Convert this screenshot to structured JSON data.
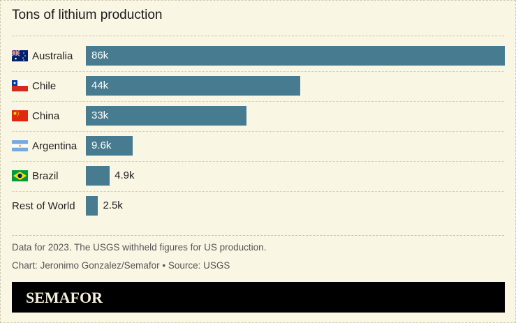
{
  "chart_data": {
    "type": "bar",
    "orientation": "horizontal",
    "title": "Tons of lithium production",
    "categories": [
      "Australia",
      "Chile",
      "China",
      "Argentina",
      "Brazil",
      "Rest of World"
    ],
    "values": [
      86000,
      44000,
      33000,
      9600,
      4900,
      2500
    ],
    "data_labels": [
      "86k",
      "44k",
      "33k",
      "9.6k",
      "4.9k",
      "2.5k"
    ],
    "flags": [
      "australia-flag",
      "chile-flag",
      "china-flag",
      "argentina-flag",
      "brazil-flag",
      null
    ],
    "bar_color": "#477b8f",
    "xlim": [
      0,
      86000
    ],
    "grid": false
  },
  "notes": {
    "note": "Data for 2023. The USGS withheld figures for US production.",
    "credit": "Chart: Jeronimo Gonzalez/Semafor • Source: USGS"
  },
  "logo": "SEMAFOR"
}
